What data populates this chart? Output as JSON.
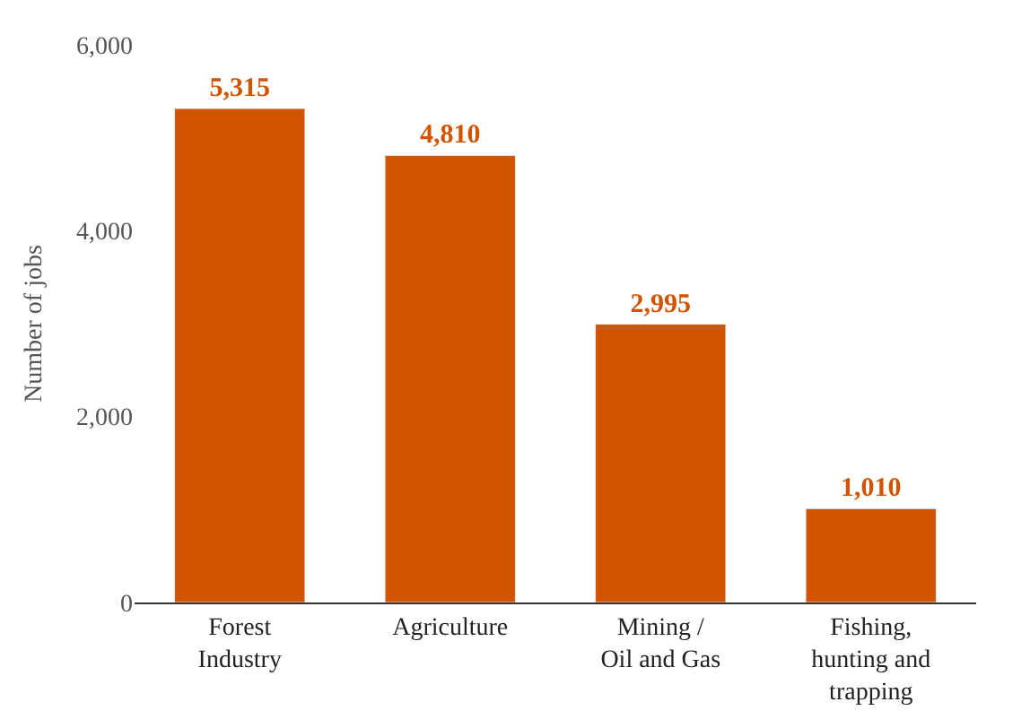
{
  "chart_data": {
    "type": "bar",
    "ylabel": "Number of jobs",
    "categories": [
      "Forest\nIndustry",
      "Agriculture",
      "Mining /\nOil and Gas",
      "Fishing,\nhunting and\ntrapping"
    ],
    "values": [
      5315,
      4810,
      2995,
      1010
    ],
    "color": "#d35400",
    "ylim": [
      0,
      6000
    ],
    "yticks": [
      {
        "value": 0,
        "label": "0"
      },
      {
        "value": 2000,
        "label": "2,000"
      },
      {
        "value": 4000,
        "label": "4,000"
      },
      {
        "value": 6000,
        "label": "6,000"
      }
    ],
    "value_labels": [
      "5,315",
      "4,810",
      "2,995",
      "1,010"
    ],
    "legend": false
  }
}
